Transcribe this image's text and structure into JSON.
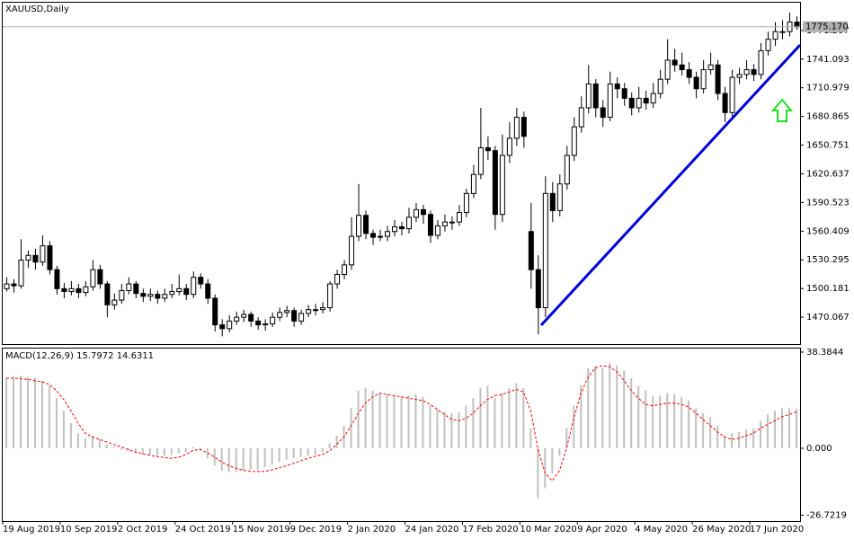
{
  "chart_data": [
    {
      "type": "candlestick",
      "title": "XAUUSD,Daily",
      "up_color": "#ffffff",
      "down_color": "#000000",
      "edge_color": "#000000",
      "xlim": [
        -0.5,
        110.5
      ],
      "ylim": [
        1441.84,
        1800.37
      ],
      "yticks": [
        1470.067,
        1500.181,
        1530.295,
        1560.409,
        1590.523,
        1620.637,
        1650.751,
        1680.865,
        1710.979,
        1741.093,
        1771.207
      ],
      "last_price": {
        "value": 1775.17,
        "label": "1775.170"
      },
      "ohlc": [
        [
          1500,
          1512,
          1497,
          1505
        ],
        [
          1505,
          1510,
          1496,
          1503
        ],
        [
          1503,
          1552,
          1500,
          1530
        ],
        [
          1530,
          1540,
          1522,
          1535
        ],
        [
          1535,
          1542,
          1520,
          1528
        ],
        [
          1528,
          1556,
          1524,
          1545
        ],
        [
          1545,
          1550,
          1515,
          1520
        ],
        [
          1520,
          1524,
          1494,
          1500
        ],
        [
          1500,
          1506,
          1490,
          1497
        ],
        [
          1497,
          1508,
          1493,
          1500
        ],
        [
          1500,
          1505,
          1490,
          1496
        ],
        [
          1496,
          1508,
          1492,
          1502
        ],
        [
          1502,
          1530,
          1498,
          1520
        ],
        [
          1520,
          1525,
          1500,
          1505
        ],
        [
          1505,
          1508,
          1470,
          1483
        ],
        [
          1483,
          1495,
          1478,
          1488
        ],
        [
          1488,
          1505,
          1484,
          1498
        ],
        [
          1498,
          1512,
          1494,
          1505
        ],
        [
          1505,
          1508,
          1490,
          1495
        ],
        [
          1495,
          1500,
          1486,
          1492
        ],
        [
          1492,
          1500,
          1487,
          1494
        ],
        [
          1494,
          1498,
          1484,
          1490
        ],
        [
          1490,
          1500,
          1486,
          1494
        ],
        [
          1494,
          1505,
          1490,
          1497
        ],
        [
          1497,
          1515,
          1493,
          1500
        ],
        [
          1500,
          1505,
          1488,
          1494
        ],
        [
          1494,
          1518,
          1490,
          1512
        ],
        [
          1512,
          1516,
          1500,
          1505
        ],
        [
          1505,
          1510,
          1484,
          1490
        ],
        [
          1490,
          1494,
          1455,
          1462
        ],
        [
          1462,
          1468,
          1450,
          1458
        ],
        [
          1458,
          1472,
          1454,
          1466
        ],
        [
          1466,
          1476,
          1462,
          1470
        ],
        [
          1470,
          1478,
          1465,
          1473
        ],
        [
          1473,
          1476,
          1460,
          1466
        ],
        [
          1466,
          1470,
          1457,
          1462
        ],
        [
          1462,
          1468,
          1456,
          1463
        ],
        [
          1463,
          1475,
          1460,
          1470
        ],
        [
          1470,
          1480,
          1466,
          1475
        ],
        [
          1475,
          1482,
          1470,
          1477
        ],
        [
          1477,
          1480,
          1460,
          1466
        ],
        [
          1466,
          1478,
          1462,
          1474
        ],
        [
          1474,
          1483,
          1470,
          1478
        ],
        [
          1478,
          1484,
          1472,
          1478
        ],
        [
          1478,
          1486,
          1474,
          1480
        ],
        [
          1480,
          1508,
          1476,
          1505
        ],
        [
          1505,
          1520,
          1500,
          1515
        ],
        [
          1515,
          1530,
          1510,
          1525
        ],
        [
          1525,
          1575,
          1520,
          1555
        ],
        [
          1555,
          1610,
          1550,
          1577
        ],
        [
          1577,
          1582,
          1552,
          1558
        ],
        [
          1558,
          1562,
          1546,
          1554
        ],
        [
          1554,
          1562,
          1550,
          1555
        ],
        [
          1555,
          1566,
          1550,
          1560
        ],
        [
          1560,
          1572,
          1555,
          1565
        ],
        [
          1565,
          1570,
          1556,
          1563
        ],
        [
          1563,
          1585,
          1558,
          1575
        ],
        [
          1575,
          1590,
          1570,
          1583
        ],
        [
          1583,
          1588,
          1568,
          1578
        ],
        [
          1578,
          1582,
          1548,
          1556
        ],
        [
          1556,
          1572,
          1552,
          1566
        ],
        [
          1566,
          1578,
          1560,
          1570
        ],
        [
          1570,
          1576,
          1562,
          1570
        ],
        [
          1570,
          1588,
          1566,
          1580
        ],
        [
          1580,
          1605,
          1575,
          1600
        ],
        [
          1600,
          1630,
          1595,
          1620
        ],
        [
          1620,
          1690,
          1615,
          1648
        ],
        [
          1648,
          1660,
          1635,
          1645
        ],
        [
          1645,
          1650,
          1562,
          1578
        ],
        [
          1578,
          1662,
          1570,
          1640
        ],
        [
          1640,
          1675,
          1632,
          1658
        ],
        [
          1658,
          1690,
          1650,
          1680
        ],
        [
          1680,
          1686,
          1648,
          1660
        ],
        [
          1560,
          1590,
          1500,
          1520
        ],
        [
          1520,
          1535,
          1452,
          1480
        ],
        [
          1480,
          1618,
          1470,
          1600
        ],
        [
          1600,
          1612,
          1570,
          1582
        ],
        [
          1582,
          1620,
          1576,
          1610
        ],
        [
          1610,
          1650,
          1604,
          1640
        ],
        [
          1640,
          1680,
          1634,
          1670
        ],
        [
          1670,
          1702,
          1664,
          1690
        ],
        [
          1690,
          1735,
          1684,
          1715
        ],
        [
          1715,
          1720,
          1680,
          1690
        ],
        [
          1690,
          1698,
          1670,
          1680
        ],
        [
          1680,
          1728,
          1676,
          1715
        ],
        [
          1715,
          1722,
          1700,
          1710
        ],
        [
          1710,
          1716,
          1692,
          1700
        ],
        [
          1700,
          1706,
          1682,
          1690
        ],
        [
          1690,
          1712,
          1685,
          1700
        ],
        [
          1700,
          1708,
          1688,
          1695
        ],
        [
          1695,
          1716,
          1690,
          1705
        ],
        [
          1705,
          1730,
          1700,
          1720
        ],
        [
          1720,
          1762,
          1715,
          1740
        ],
        [
          1740,
          1752,
          1728,
          1735
        ],
        [
          1735,
          1748,
          1724,
          1730
        ],
        [
          1730,
          1738,
          1715,
          1722
        ],
        [
          1722,
          1728,
          1700,
          1710
        ],
        [
          1710,
          1740,
          1705,
          1730
        ],
        [
          1730,
          1748,
          1725,
          1735
        ],
        [
          1735,
          1740,
          1698,
          1705
        ],
        [
          1705,
          1712,
          1675,
          1685
        ],
        [
          1685,
          1730,
          1680,
          1722
        ],
        [
          1722,
          1732,
          1715,
          1725
        ],
        [
          1725,
          1740,
          1720,
          1730
        ],
        [
          1730,
          1736,
          1718,
          1725
        ],
        [
          1725,
          1758,
          1720,
          1750
        ],
        [
          1750,
          1770,
          1745,
          1762
        ],
        [
          1762,
          1780,
          1755,
          1770
        ],
        [
          1770,
          1782,
          1762,
          1770
        ],
        [
          1770,
          1790,
          1765,
          1780
        ],
        [
          1780,
          1786,
          1772,
          1775
        ]
      ]
    },
    {
      "type": "macd",
      "title": "MACD(12,26,9)",
      "main_value": 15.7972,
      "signal_value": 14.6311,
      "xlim": [
        -0.5,
        110.5
      ],
      "ylim": [
        -29.05,
        39.81
      ],
      "yticks": [
        38.3844,
        {
          "value": 0,
          "label": "0.000"
        },
        -26.7219
      ],
      "xticks": [
        {
          "value": 0,
          "label": "19 Aug 2019"
        },
        {
          "value": 8,
          "label": "10 Sep 2019"
        },
        {
          "value": 16,
          "label": "2 Oct 2019"
        },
        {
          "value": 24,
          "label": "24 Oct 2019"
        },
        {
          "value": 32,
          "label": "15 Nov 2019"
        },
        {
          "value": 40,
          "label": "9 Dec 2019"
        },
        {
          "value": 48,
          "label": "2 Jan 2020"
        },
        {
          "value": 56,
          "label": "24 Jan 2020"
        },
        {
          "value": 64,
          "label": "17 Feb 2020"
        },
        {
          "value": 72,
          "label": "10 Mar 2020"
        },
        {
          "value": 80,
          "label": "9 Apr 2020"
        },
        {
          "value": 88,
          "label": "4 May 2020"
        },
        {
          "value": 96,
          "label": "26 May 2020"
        },
        {
          "value": 104,
          "label": "17 Jun 2020"
        }
      ],
      "histogram": {
        "color": "#c0c0c0",
        "values": [
          28,
          28.5,
          29,
          28.5,
          28,
          27,
          25,
          20,
          15,
          10,
          6,
          4,
          5,
          3.5,
          1.5,
          0.5,
          -0.5,
          -1,
          -2,
          -2.5,
          -2.5,
          -3,
          -3,
          -2.5,
          -2,
          -1.5,
          0.5,
          -1,
          -4,
          -7,
          -9,
          -9.5,
          -9.5,
          -9,
          -8.5,
          -8.5,
          -7.5,
          -6.5,
          -5.5,
          -4.5,
          -4,
          -3.5,
          -3,
          -2.5,
          -1.5,
          2,
          5,
          9,
          16,
          23,
          24,
          23,
          22,
          21.5,
          21,
          20.5,
          21,
          21.5,
          20.5,
          17,
          15.5,
          14.5,
          14,
          14.5,
          17,
          20,
          24,
          25,
          20,
          22,
          24,
          26,
          24,
          8,
          -20,
          -16,
          -10,
          -3,
          8,
          17,
          25,
          32,
          33,
          32,
          34,
          33,
          31,
          28,
          25,
          23,
          21,
          21,
          22,
          21.5,
          20.5,
          19,
          16,
          14,
          12.5,
          9,
          5,
          6,
          6.5,
          7.5,
          8,
          11,
          13.5,
          15,
          16,
          16,
          15.8
        ]
      },
      "signal": {
        "color": "#ff0000",
        "values": [
          28,
          28,
          27.8,
          27.5,
          27,
          26.5,
          25.5,
          23,
          19.5,
          15,
          10,
          6,
          4.5,
          3.5,
          2.5,
          1.5,
          0.5,
          -0.5,
          -1.5,
          -2.2,
          -2.8,
          -3.3,
          -3.7,
          -4,
          -3.6,
          -2.5,
          -0.8,
          -0.5,
          -1.8,
          -3.5,
          -5.5,
          -7,
          -8,
          -8.8,
          -9.2,
          -9.3,
          -9.2,
          -8.6,
          -7.8,
          -7,
          -6,
          -5,
          -4,
          -3.2,
          -2.5,
          -1,
          1.5,
          4.5,
          9,
          14,
          18,
          20.5,
          22,
          21.5,
          21,
          20.5,
          20,
          19.5,
          19,
          17.5,
          15.5,
          13.5,
          11.5,
          11,
          12,
          14,
          17,
          19.5,
          21,
          21.5,
          22.5,
          23.5,
          22.5,
          15,
          0,
          -10,
          -13,
          -9,
          0,
          12,
          22,
          28.5,
          32,
          33,
          32.5,
          30.5,
          27,
          23,
          20,
          17.5,
          17,
          17.5,
          18,
          18,
          17.5,
          16.5,
          14,
          11.5,
          9,
          6.5,
          4.5,
          3.5,
          4,
          5,
          6,
          8,
          9.5,
          11,
          12.5,
          13.5,
          14.6
        ]
      }
    }
  ]
}
